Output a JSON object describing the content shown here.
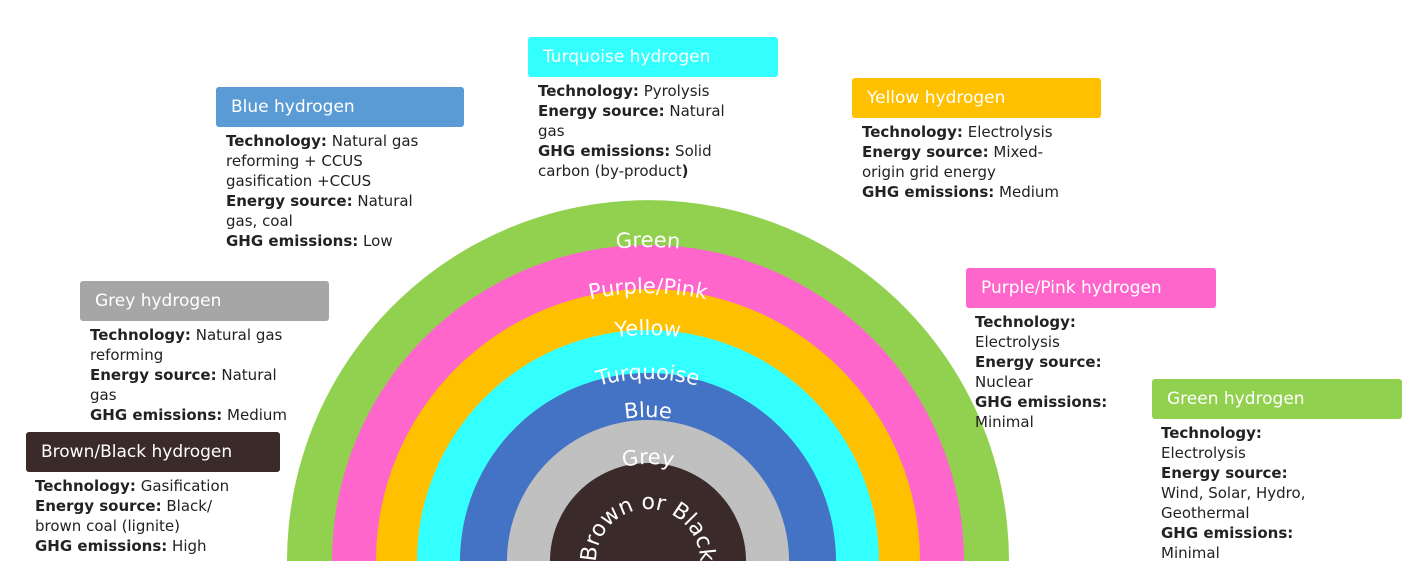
{
  "diagram": {
    "arcs": [
      {
        "label": "Green",
        "color": "#92d050"
      },
      {
        "label": "Purple/Pink",
        "color": "#ff66cc"
      },
      {
        "label": "Yellow",
        "color": "#ffc000"
      },
      {
        "label": "Turquoise",
        "color": "#33ffff"
      },
      {
        "label": "Blue",
        "color": "#4472c4"
      },
      {
        "label": "Grey",
        "color": "#c0c0c0"
      },
      {
        "label": "Brown or Black",
        "color": "#3b2a2a"
      }
    ]
  },
  "cards": {
    "brown": {
      "title": "Brown/Black hydrogen",
      "color": "#3b2a2a",
      "tech_key": "Technology:",
      "tech_val": "Gasification",
      "energy_key": "Energy source:",
      "energy_val1": "Black/",
      "energy_val2": "brown coal (lignite)",
      "ghg_key": "GHG emissions:",
      "ghg_val": "High"
    },
    "grey": {
      "title": "Grey hydrogen",
      "color": "#a6a6a6",
      "tech_key": "Technology:",
      "tech_val1": "Natural gas",
      "tech_val2": "reforming",
      "energy_key": "Energy source:",
      "energy_val1": "Natural",
      "energy_val2": "gas",
      "ghg_key": "GHG emissions:",
      "ghg_val": "Medium"
    },
    "blue": {
      "title": "Blue hydrogen",
      "color": "#5b9bd5",
      "tech_key": "Technology:",
      "tech_val1": "Natural gas",
      "tech_val2": "reforming + CCUS",
      "tech_val3": "gasification +CCUS",
      "energy_key": "Energy source:",
      "energy_val1": "Natural",
      "energy_val2": "gas, coal",
      "ghg_key": "GHG emissions:",
      "ghg_val": "Low"
    },
    "turquoise": {
      "title": "Turquoise hydrogen",
      "color": "#33ffff",
      "tech_key": "Technology:",
      "tech_val": "Pyrolysis",
      "energy_key": "Energy source:",
      "energy_val1": "Natural",
      "energy_val2": "gas",
      "ghg_key": "GHG emissions:",
      "ghg_val1": "Solid",
      "ghg_val2": "carbon (by-product",
      "ghg_paren": ")"
    },
    "yellow": {
      "title": "Yellow hydrogen",
      "color": "#ffc000",
      "tech_key": "Technology:",
      "tech_val": "Electrolysis",
      "energy_key": "Energy source:",
      "energy_val1": "Mixed-",
      "energy_val2": "origin grid energy",
      "ghg_key": "GHG emissions:",
      "ghg_val": "Medium"
    },
    "purple": {
      "title": "Purple/Pink hydrogen",
      "color": "#ff66cc",
      "tech_key": "Technology:",
      "tech_val": "Electrolysis",
      "energy_key": "Energy source:",
      "energy_val": "Nuclear",
      "ghg_key": "GHG emissions:",
      "ghg_val": "Minimal"
    },
    "green": {
      "title": "Green hydrogen",
      "color": "#92d050",
      "tech_key": "Technology:",
      "tech_val": "Electrolysis",
      "energy_key": "Energy source:",
      "energy_val": "Wind, Solar, Hydro, Geothermal",
      "ghg_key": "GHG emissions:",
      "ghg_val": "Minimal"
    }
  }
}
